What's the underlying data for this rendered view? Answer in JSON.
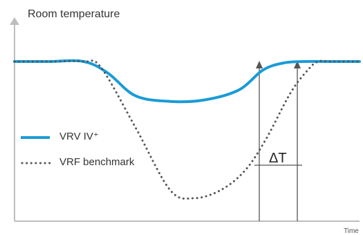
{
  "chart_data": {
    "type": "line",
    "ylabel": "Room temperature",
    "xlabel": "Time",
    "annotation": "ΔT",
    "grid": false,
    "legend_position": "left",
    "series": [
      {
        "name": "VRV IV⁺",
        "color": "#1a9bd7",
        "style": "solid",
        "x": [
          0,
          10,
          20,
          27,
          35,
          45,
          55,
          65,
          72,
          78,
          84,
          90,
          100
        ],
        "y": [
          100,
          100,
          100,
          96,
          88,
          86,
          86.5,
          90,
          97,
          99.5,
          100,
          100,
          100
        ]
      },
      {
        "name": "VRF benchmark",
        "color": "#555555",
        "style": "dotted",
        "x": [
          0,
          10,
          20,
          25,
          35,
          45,
          52,
          60,
          67,
          73,
          80,
          85,
          88,
          92,
          100
        ],
        "y": [
          100,
          100,
          100,
          98,
          77,
          55,
          52,
          55,
          62,
          73,
          89,
          97,
          100,
          100,
          100
        ]
      }
    ]
  }
}
